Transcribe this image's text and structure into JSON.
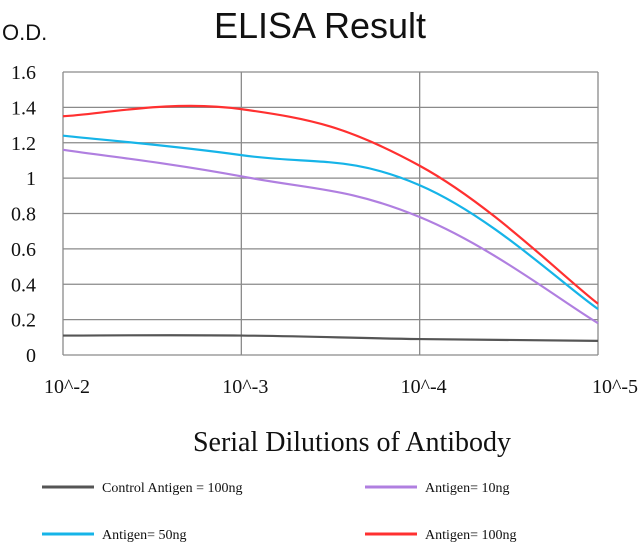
{
  "chart_data": {
    "type": "line",
    "title": "ELISA Result",
    "ylabel": "O.D.",
    "xlabel": "Serial Dilutions of Antibody",
    "x_tick_labels": [
      "10^-2",
      "10^-3",
      "10^-4",
      "10^-5"
    ],
    "x": [
      0.01,
      0.001,
      0.0001,
      1e-05
    ],
    "y_tick_labels": [
      "0",
      "0.2",
      "0.4",
      "0.6",
      "0.8",
      "1",
      "1.2",
      "1.4",
      "1.6"
    ],
    "ylim": [
      0,
      1.6
    ],
    "grid": true,
    "legend_position": "bottom",
    "series": [
      {
        "name": "Control Antigen = 100ng",
        "color": "#555555",
        "values": [
          0.11,
          0.11,
          0.09,
          0.08
        ]
      },
      {
        "name": "Antigen= 10ng",
        "color": "#b07fe0",
        "values": [
          1.16,
          1.01,
          0.78,
          0.18
        ]
      },
      {
        "name": "Antigen= 50ng",
        "color": "#16b4e8",
        "values": [
          1.24,
          1.13,
          0.96,
          0.26
        ]
      },
      {
        "name": "Antigen= 100ng",
        "color": "#ff3030",
        "values": [
          1.35,
          1.39,
          1.07,
          0.29
        ]
      }
    ]
  }
}
